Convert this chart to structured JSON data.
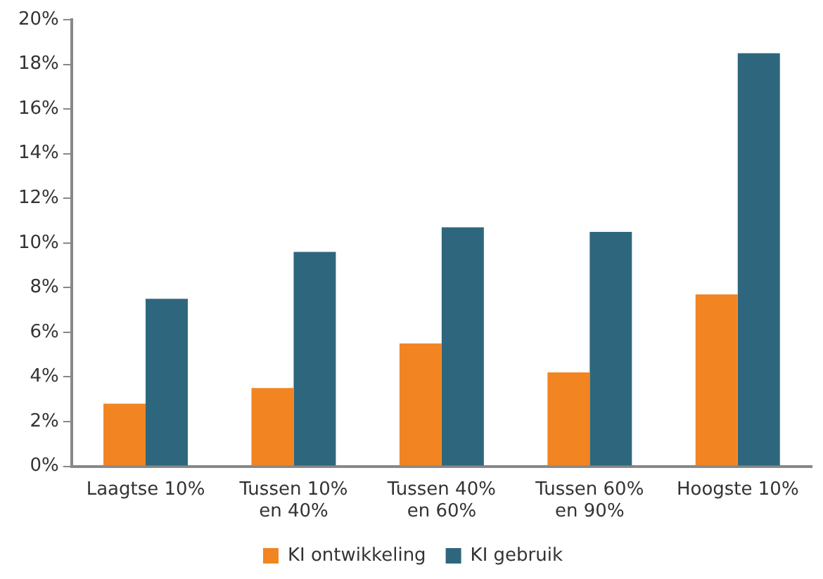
{
  "chart_data": {
    "type": "bar",
    "categories": [
      "Laagtse 10%",
      "Tussen 10% en 40%",
      "Tussen 40% en 60%",
      "Tussen 60% en 90%",
      "Hoogste 10%"
    ],
    "series": [
      {
        "name": "KI ontwikkeling",
        "color": "#f28422",
        "values": [
          2.8,
          3.5,
          5.5,
          4.2,
          7.7
        ]
      },
      {
        "name": "KI gebruik",
        "color": "#2e677d",
        "values": [
          7.5,
          9.6,
          10.7,
          10.5,
          18.5
        ]
      }
    ],
    "ylim": [
      0,
      20
    ],
    "yticks": [
      {
        "value": 0,
        "label": "0%"
      },
      {
        "value": 2,
        "label": "2%"
      },
      {
        "value": 4,
        "label": "4%"
      },
      {
        "value": 6,
        "label": "6%"
      },
      {
        "value": 8,
        "label": "8%"
      },
      {
        "value": 10,
        "label": "10%"
      },
      {
        "value": 12,
        "label": "12%"
      },
      {
        "value": 14,
        "label": "14%"
      },
      {
        "value": 16,
        "label": "16%"
      },
      {
        "value": 18,
        "label": "18%"
      },
      {
        "value": 20,
        "label": "20%"
      }
    ],
    "grid": false,
    "legend": "bottom"
  }
}
